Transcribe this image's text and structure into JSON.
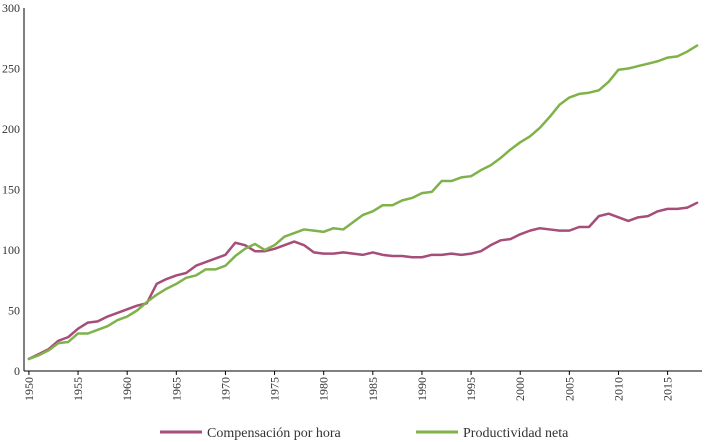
{
  "chart_data": {
    "type": "line",
    "title": "",
    "xlabel": "",
    "ylabel": "",
    "ylim": [
      0,
      300
    ],
    "xlim": [
      1949.5,
      2018.5
    ],
    "y_ticks": [
      0,
      50,
      100,
      150,
      200,
      250,
      300
    ],
    "y_tick_labels": [
      "0",
      "50",
      "100",
      "150",
      "200",
      "250",
      "300"
    ],
    "x_ticks": [
      1950,
      1955,
      1960,
      1965,
      1970,
      1975,
      1980,
      1985,
      1990,
      1995,
      2000,
      2005,
      2010,
      2015
    ],
    "x_tick_labels": [
      "1950",
      "1955",
      "1960",
      "1965",
      "1970",
      "1975",
      "1980",
      "1985",
      "1990",
      "1995",
      "2000",
      "2005",
      "2010",
      "2015"
    ],
    "grid": false,
    "legend_position": "bottom",
    "x": [
      1950,
      1951,
      1952,
      1953,
      1954,
      1955,
      1956,
      1957,
      1958,
      1959,
      1960,
      1961,
      1962,
      1963,
      1964,
      1965,
      1966,
      1967,
      1968,
      1969,
      1970,
      1971,
      1972,
      1973,
      1974,
      1975,
      1976,
      1977,
      1978,
      1979,
      1980,
      1981,
      1982,
      1983,
      1984,
      1985,
      1986,
      1987,
      1988,
      1989,
      1990,
      1991,
      1992,
      1993,
      1994,
      1995,
      1996,
      1997,
      1998,
      1999,
      2000,
      2001,
      2002,
      2003,
      2004,
      2005,
      2006,
      2007,
      2008,
      2009,
      2010,
      2011,
      2012,
      2013,
      2014,
      2015,
      2016,
      2017,
      2018
    ],
    "series": [
      {
        "name": "Compensación por hora",
        "color": "#a64d79",
        "values": [
          10,
          14,
          18,
          25,
          28,
          35,
          40,
          41,
          45,
          48,
          51,
          54,
          56,
          72,
          76,
          79,
          81,
          87,
          90,
          93,
          96,
          106,
          104,
          99,
          99,
          101,
          104,
          107,
          104,
          98,
          97,
          97,
          98,
          97,
          96,
          98,
          96,
          95,
          95,
          94,
          94,
          96,
          96,
          97,
          96,
          97,
          99,
          104,
          108,
          109,
          113,
          116,
          118,
          117,
          116,
          116,
          119,
          119,
          128,
          130,
          127,
          124,
          127,
          128,
          132,
          134,
          134,
          135,
          139
        ]
      },
      {
        "name": "Productividad neta",
        "color": "#7fb24a",
        "values": [
          10,
          13,
          17,
          23,
          24,
          31,
          31,
          34,
          37,
          42,
          45,
          50,
          57,
          63,
          68,
          72,
          77,
          79,
          84,
          84,
          87,
          95,
          101,
          105,
          100,
          104,
          111,
          114,
          117,
          116,
          115,
          118,
          117,
          123,
          129,
          132,
          137,
          137,
          141,
          143,
          147,
          148,
          157,
          157,
          160,
          161,
          166,
          170,
          176,
          183,
          189,
          194,
          201,
          210,
          220,
          226,
          229,
          230,
          232,
          239,
          249,
          250,
          252,
          254,
          256,
          259,
          260,
          264,
          269
        ]
      }
    ]
  }
}
